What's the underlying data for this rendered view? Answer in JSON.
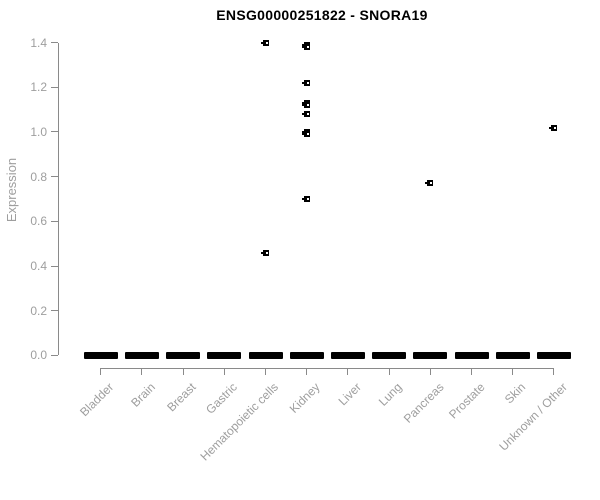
{
  "colors": {
    "background": "#ffffff",
    "title": "#000000",
    "axis": "#8a8a8a",
    "tick_label": "#9e9e9e",
    "marker": "#000000",
    "marker_center": "#ffffff"
  },
  "chart_data": {
    "type": "scatter",
    "subtype": "strip-plot",
    "title": "ENSG00000251822 - SNORA19",
    "xlabel": "",
    "ylabel": "Expression",
    "ylim": [
      0.0,
      1.4
    ],
    "ytick_labels": [
      "0.0",
      "0.2",
      "0.4",
      "0.6",
      "0.8",
      "1.0",
      "1.2",
      "1.4"
    ],
    "grid": false,
    "legend": false,
    "categories": [
      "Bladder",
      "Brain",
      "Breast",
      "Gastric",
      "Hematopoietic cells",
      "Kidney",
      "Liver",
      "Lung",
      "Pancreas",
      "Prostate",
      "Skin",
      "Unknown / Other"
    ],
    "series": [
      {
        "category": "Bladder",
        "zero_cluster": true,
        "nonzero_values": []
      },
      {
        "category": "Brain",
        "zero_cluster": true,
        "nonzero_values": []
      },
      {
        "category": "Breast",
        "zero_cluster": true,
        "nonzero_values": []
      },
      {
        "category": "Gastric",
        "zero_cluster": true,
        "nonzero_values": []
      },
      {
        "category": "Hematopoietic cells",
        "zero_cluster": true,
        "nonzero_values": [
          1.4,
          0.46
        ]
      },
      {
        "category": "Kidney",
        "zero_cluster": true,
        "nonzero_values": [
          1.39,
          1.38,
          1.22,
          1.13,
          1.12,
          1.08,
          1.0,
          0.99,
          0.7
        ]
      },
      {
        "category": "Liver",
        "zero_cluster": true,
        "nonzero_values": []
      },
      {
        "category": "Lung",
        "zero_cluster": true,
        "nonzero_values": []
      },
      {
        "category": "Pancreas",
        "zero_cluster": true,
        "nonzero_values": [
          0.77
        ]
      },
      {
        "category": "Prostate",
        "zero_cluster": true,
        "nonzero_values": []
      },
      {
        "category": "Skin",
        "zero_cluster": true,
        "nonzero_values": []
      },
      {
        "category": "Unknown / Other",
        "zero_cluster": true,
        "nonzero_values": [
          1.02
        ]
      }
    ]
  }
}
